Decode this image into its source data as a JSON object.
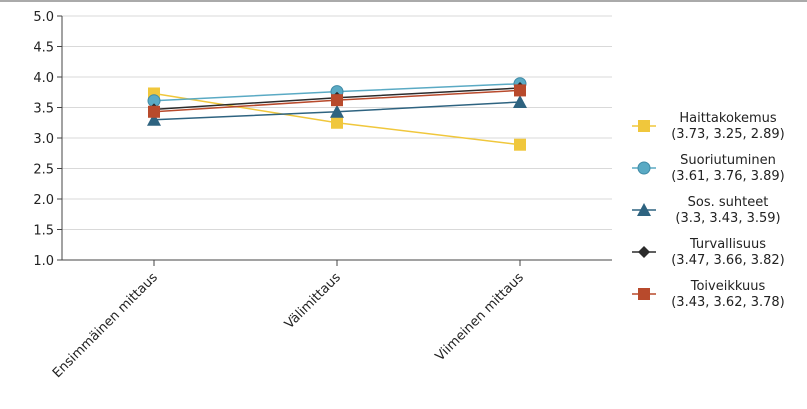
{
  "chart_data": {
    "type": "line",
    "title": "",
    "xlabel": "",
    "ylabel": "",
    "categories": [
      "Ensimmäinen mittaus",
      "Välimittaus",
      "Viimeinen mittaus"
    ],
    "ylim": [
      1.0,
      5.0
    ],
    "yticks": [
      "1.0",
      "1.5",
      "2.0",
      "2.5",
      "3.0",
      "3.5",
      "4.0",
      "4.5",
      "5.0"
    ],
    "grid": "horizontal",
    "legend_position": "right",
    "series": [
      {
        "name": "Haittakokemus",
        "legend_values": "(3.73, 3.25, 2.89)",
        "values": [
          3.73,
          3.25,
          2.89
        ],
        "color": "#f0c73c",
        "marker": "square"
      },
      {
        "name": "Suoriutuminen",
        "legend_values": "(3.61, 3.76, 3.89)",
        "values": [
          3.61,
          3.76,
          3.89
        ],
        "color": "#5aaac4",
        "marker": "circle"
      },
      {
        "name": "Sos. suhteet",
        "legend_values": "(3.3, 3.43, 3.59)",
        "values": [
          3.3,
          3.43,
          3.59
        ],
        "color": "#2e6380",
        "marker": "triangle"
      },
      {
        "name": "Turvallisuus",
        "legend_values": "(3.47, 3.66, 3.82)",
        "values": [
          3.47,
          3.66,
          3.82
        ],
        "color": "#2b2b2b",
        "marker": "diamond"
      },
      {
        "name": "Toiveikkuus",
        "legend_values": "(3.43, 3.62, 3.78)",
        "values": [
          3.43,
          3.62,
          3.78
        ],
        "color": "#b84a2c",
        "marker": "square"
      }
    ]
  }
}
